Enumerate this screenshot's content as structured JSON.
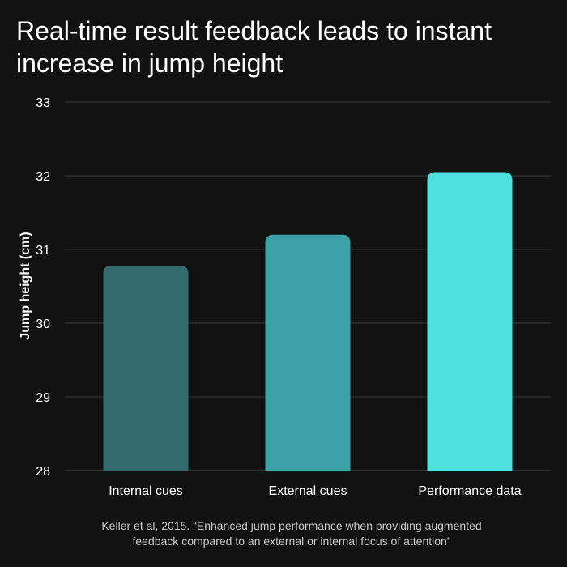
{
  "chart_data": {
    "type": "bar",
    "title": "Real-time result feedback leads to instant increase in jump height",
    "xlabel": "",
    "ylabel": "Jump height (cm)",
    "categories": [
      "Internal cues",
      "External cues",
      "Performance data"
    ],
    "values": [
      30.78,
      31.2,
      32.05
    ],
    "ylim": [
      28,
      33
    ],
    "yticks": [
      "28",
      "29",
      "30",
      "31",
      "32",
      "33"
    ],
    "grid": true,
    "bar_colors": [
      "#336a6e",
      "#3ba1a6",
      "#4ee0e0"
    ],
    "background": "#121212",
    "grid_color": "#3a3a3a"
  },
  "caption": {
    "line1": "Keller et al, 2015. “Enhanced jump performance when providing augmented",
    "line2": "feedback compared to an external or internal focus of attention”"
  }
}
